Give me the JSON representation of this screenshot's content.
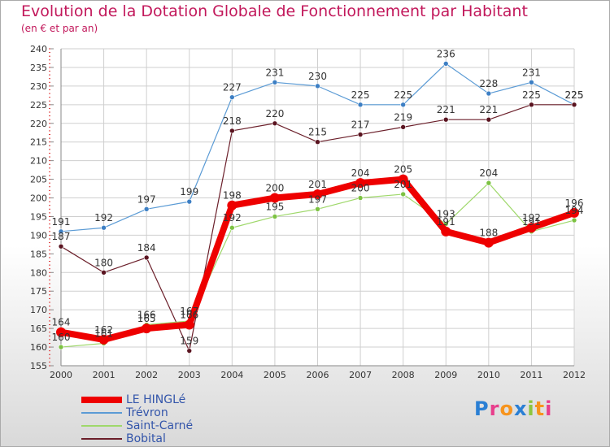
{
  "title": "Evolution de la Dotation Globale de Fonctionnement par Habitant",
  "subtitle": "(en € et par an)",
  "logo": {
    "text": "Proxiti",
    "colors": [
      "#2a7fd4",
      "#e83e8c",
      "#f7941d",
      "#2a7fd4",
      "#8dc63f",
      "#f7941d",
      "#e83e8c"
    ]
  },
  "chart_data": {
    "type": "line",
    "categories": [
      "2000",
      "2001",
      "2002",
      "2003",
      "2004",
      "2005",
      "2006",
      "2007",
      "2008",
      "2009",
      "2010",
      "2011",
      "2012"
    ],
    "ylim": [
      155,
      240
    ],
    "yticks": [
      155,
      160,
      165,
      170,
      175,
      180,
      185,
      190,
      195,
      200,
      205,
      210,
      215,
      220,
      225,
      230,
      235,
      240
    ],
    "series": [
      {
        "name": "Trévron",
        "color": "#5b9bd5",
        "marker": "#3d7fc4",
        "width": 1.2,
        "values": [
          191,
          192,
          197,
          199,
          227,
          231,
          230,
          225,
          225,
          236,
          228,
          231,
          225
        ],
        "labels": [
          "191",
          "192",
          "197",
          "199",
          "227",
          "231",
          "230",
          "225",
          "225",
          "236",
          "228",
          "231",
          "225"
        ]
      },
      {
        "name": "Bobital",
        "color": "#6b1f2a",
        "marker": "#5a1420",
        "width": 1.2,
        "values": [
          187,
          180,
          184,
          159,
          218,
          220,
          215,
          217,
          219,
          221,
          221,
          225,
          225
        ],
        "labels": [
          "187",
          "180",
          "184",
          "159",
          "218",
          "220",
          "215",
          "217",
          "219",
          "221",
          "221",
          "225",
          "225"
        ]
      },
      {
        "name": "Saint-Carné",
        "color": "#9fd86b",
        "marker": "#7cc242",
        "width": 1.2,
        "values": [
          160,
          161,
          166,
          167,
          192,
          195,
          197,
          200,
          201,
          193,
          204,
          191,
          194
        ],
        "labels": [
          "160",
          "161",
          "166",
          "167",
          "192",
          "195",
          "197",
          "200",
          "201",
          "193",
          "204",
          "191",
          "194"
        ]
      },
      {
        "name": "LE HINGLé",
        "color": "#ee0000",
        "marker": "#ee0000",
        "width": 8,
        "values": [
          164,
          162,
          165,
          166,
          198,
          200,
          201,
          204,
          205,
          191,
          188,
          192,
          196
        ],
        "labels": [
          "164",
          "162",
          "165",
          "166",
          "198",
          "200",
          "201",
          "204",
          "205",
          "191",
          "188",
          "192",
          "196"
        ]
      }
    ],
    "legend": [
      {
        "name": "LE HINGLé",
        "color": "#ee0000",
        "width": 8
      },
      {
        "name": "Trévron",
        "color": "#5b9bd5",
        "width": 2
      },
      {
        "name": "Saint-Carné",
        "color": "#9fd86b",
        "width": 2
      },
      {
        "name": "Bobital",
        "color": "#6b1f2a",
        "width": 2
      }
    ]
  }
}
